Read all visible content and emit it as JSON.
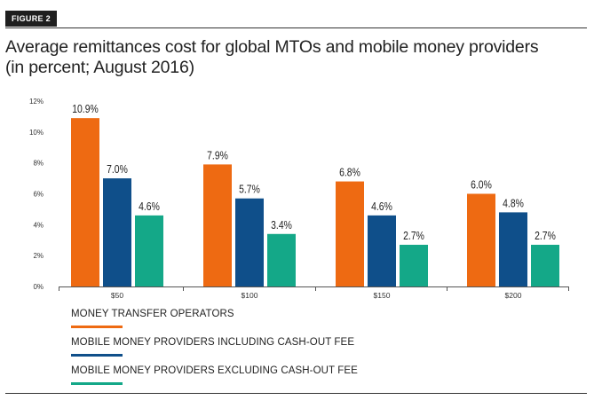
{
  "figure_label": "FIGURE 2",
  "title_line1": "Average remittances cost for global MTOs and mobile money providers",
  "title_line2": "(in percent; August 2016)",
  "chart_data": {
    "type": "bar",
    "title": "Average remittances cost for global MTOs and mobile money providers (in percent; August 2016)",
    "xlabel": "",
    "ylabel": "",
    "categories": [
      "$50",
      "$100",
      "$150",
      "$200"
    ],
    "ylim": [
      0,
      12
    ],
    "yticks": [
      0,
      2,
      4,
      6,
      8,
      10,
      12
    ],
    "ytick_labels": [
      "0%",
      "2%",
      "4%",
      "6%",
      "8%",
      "10%",
      "12%"
    ],
    "series": [
      {
        "name": "MONEY TRANSFER OPERATORS",
        "color": "#ee6a12",
        "values": [
          10.9,
          7.9,
          6.8,
          6.0
        ],
        "labels": [
          "10.9%",
          "7.9%",
          "6.8%",
          "6.0%"
        ]
      },
      {
        "name": "MOBILE MONEY PROVIDERS INCLUDING CASH-OUT FEE",
        "color": "#0f4f8a",
        "values": [
          7.0,
          5.7,
          4.6,
          4.8
        ],
        "labels": [
          "7.0%",
          "5.7%",
          "4.6%",
          "4.8%"
        ]
      },
      {
        "name": "MOBILE MONEY PROVIDERS EXCLUDING CASH-OUT FEE",
        "color": "#14a888",
        "values": [
          4.6,
          3.4,
          2.7,
          2.7
        ],
        "labels": [
          "4.6%",
          "3.4%",
          "2.7%",
          "2.7%"
        ]
      }
    ]
  }
}
